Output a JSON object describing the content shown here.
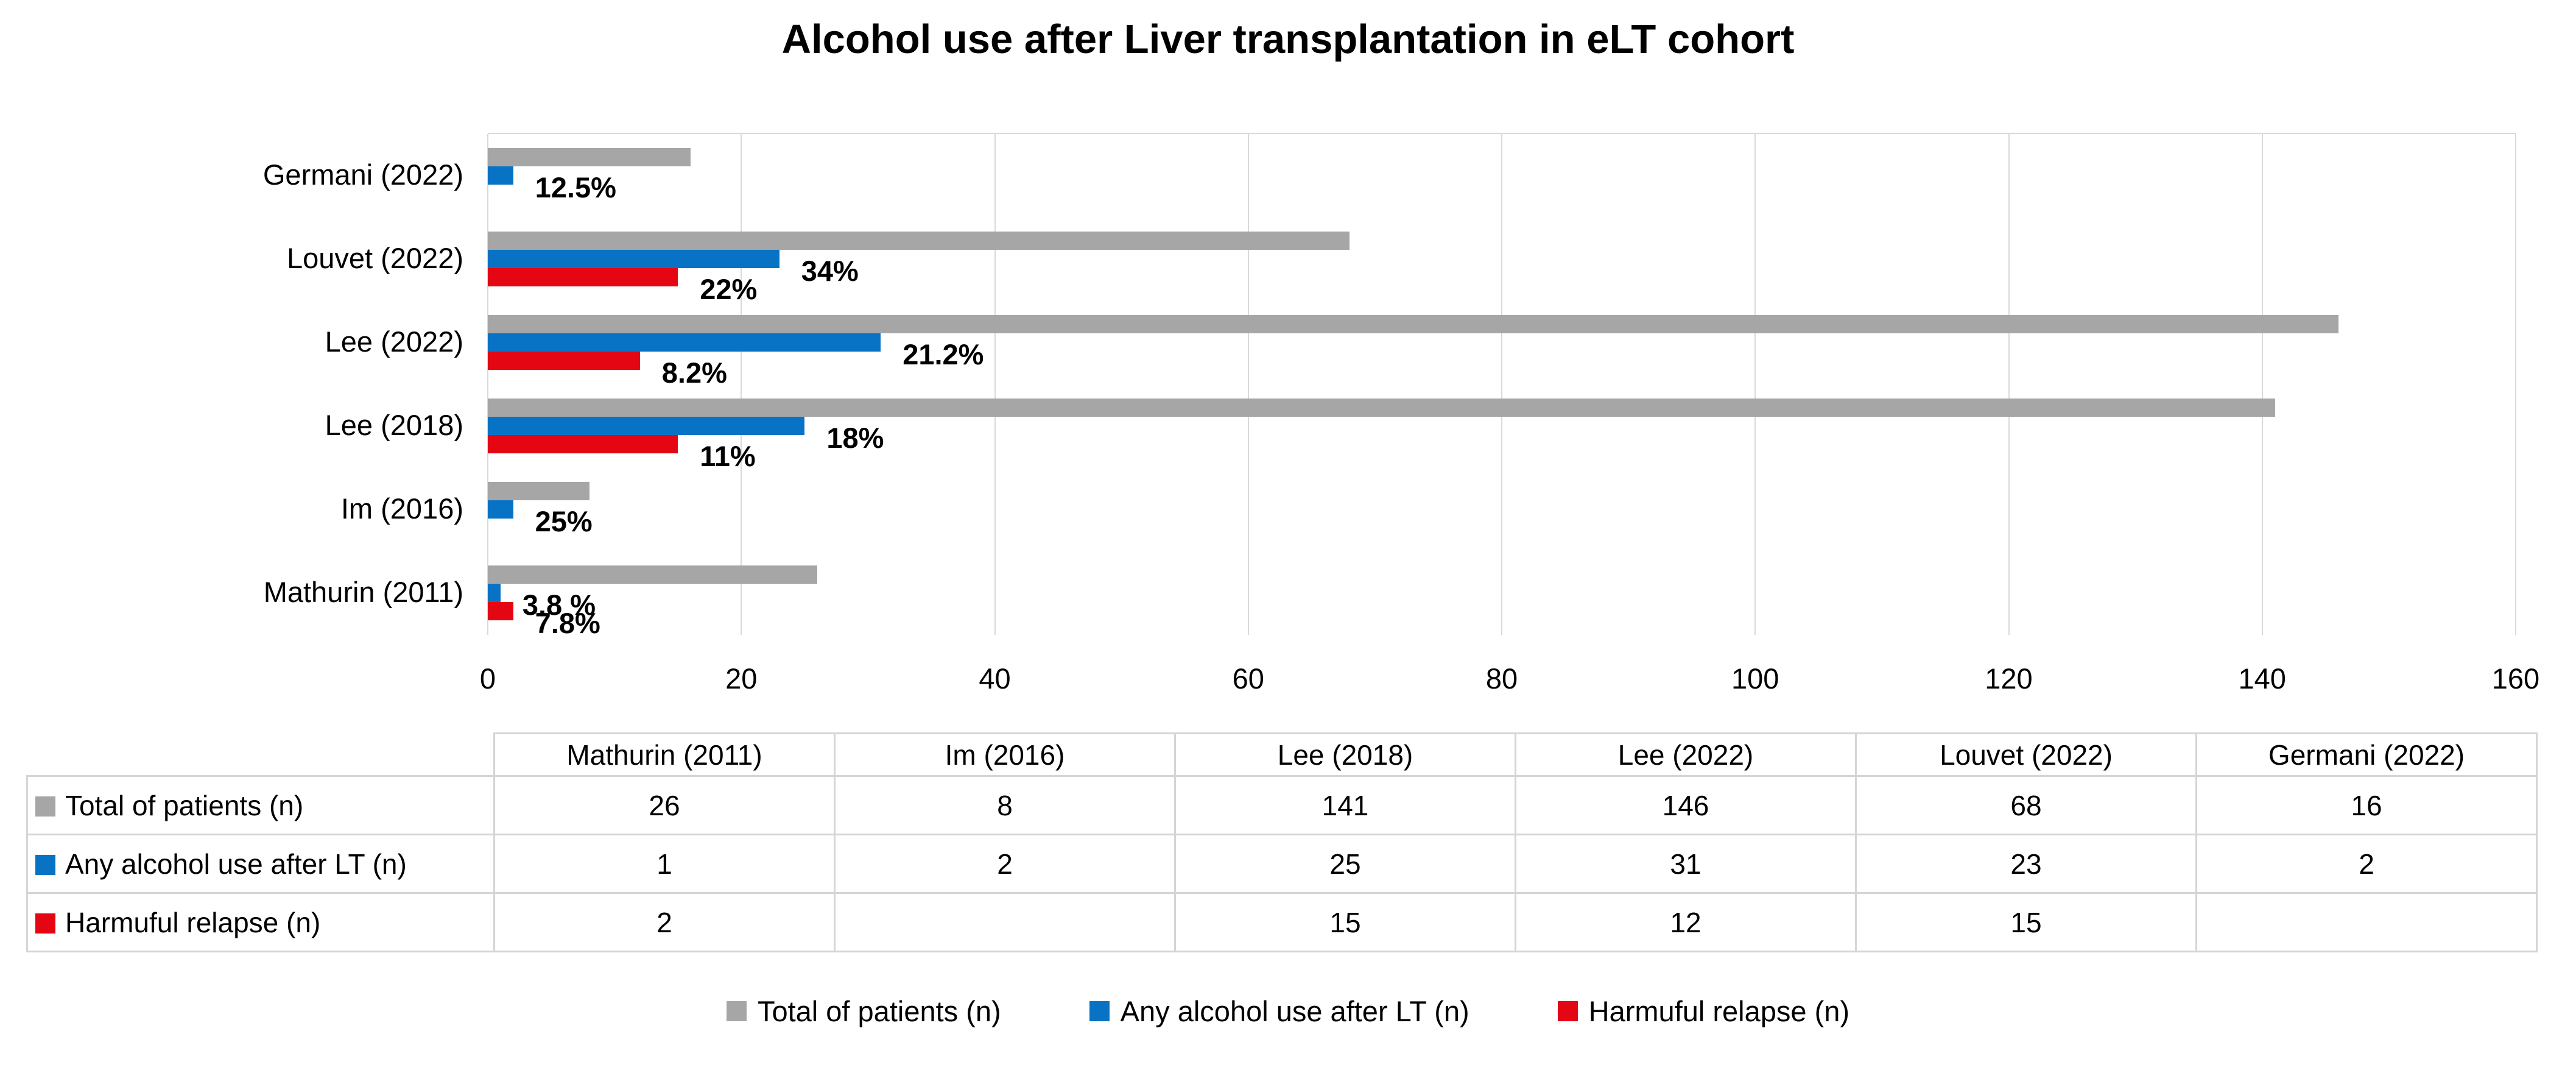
{
  "chart_data": {
    "type": "bar",
    "orientation": "horizontal",
    "title": "Alcohol use after Liver transplantation in eLT cohort",
    "categories": [
      "Germani (2022)",
      "Louvet (2022)",
      "Lee (2022)",
      "Lee (2018)",
      "Im (2016)",
      "Mathurin (2011)"
    ],
    "xlim": [
      0,
      160
    ],
    "x_ticks": [
      "0",
      "20",
      "40",
      "60",
      "80",
      "100",
      "120",
      "140",
      "160"
    ],
    "grid": true,
    "legend_position": "bottom",
    "series": [
      {
        "name": "Total of patients (n)",
        "color": "#a6a6a6",
        "values": [
          16,
          68,
          146,
          141,
          8,
          26
        ],
        "data_labels": [
          "",
          "",
          "",
          "",
          "",
          ""
        ]
      },
      {
        "name": "Any alcohol use after LT (n)",
        "color": "#0873c5",
        "values": [
          2,
          23,
          31,
          25,
          2,
          1
        ],
        "data_labels": [
          "12.5%",
          "34%",
          "21.2%",
          "18%",
          "25%",
          "3.8 %"
        ]
      },
      {
        "name": "Harmuful relapse (n)",
        "color": "#e40613",
        "values": [
          null,
          15,
          12,
          15,
          null,
          2
        ],
        "data_labels": [
          "",
          "22%",
          "8.2%",
          "11%",
          "",
          "7.8%"
        ]
      }
    ],
    "table": {
      "column_headers": [
        "Mathurin (2011)",
        "Im (2016)",
        "Lee (2018)",
        "Lee (2022)",
        "Louvet (2022)",
        "Germani (2022)"
      ],
      "rows": [
        {
          "label": "Total of patients (n)",
          "values": [
            "26",
            "8",
            "141",
            "146",
            "68",
            "16"
          ]
        },
        {
          "label": "Any alcohol use after LT (n)",
          "values": [
            "1",
            "2",
            "25",
            "31",
            "23",
            "2"
          ]
        },
        {
          "label": "Harmuful relapse (n)",
          "values": [
            "2",
            "",
            "15",
            "12",
            "15",
            ""
          ]
        }
      ]
    },
    "legend": [
      "Total of patients (n)",
      "Any alcohol use after LT (n)",
      "Harmuful relapse (n)"
    ]
  },
  "colors": {
    "gridline": "#d9d9d9",
    "table_border": "#d6d4d4",
    "text": "#000000",
    "background": "#ffffff"
  }
}
